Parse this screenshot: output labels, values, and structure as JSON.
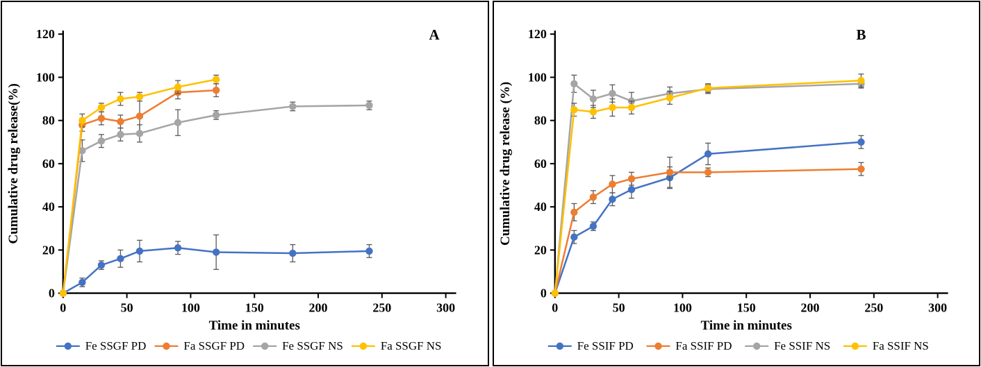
{
  "figure": {
    "background": "#ffffff",
    "border_color": "#000000"
  },
  "chart_data": [
    {
      "type": "line",
      "panel_label": "A",
      "xlabel": "Time in minutes",
      "ylabel": "Cumulative drug release(%)",
      "xlim": [
        0,
        300
      ],
      "ylim": [
        0,
        120
      ],
      "xticks": [
        0,
        50,
        100,
        150,
        200,
        250,
        300
      ],
      "yticks": [
        0,
        20,
        40,
        60,
        80,
        100,
        120
      ],
      "grid": false,
      "error_bars": true,
      "legend_position": "bottom",
      "panel_label_xfrac": 0.97,
      "axis_color": "#000000",
      "error_bar_color": "#595959",
      "series": [
        {
          "name": "Fe SSGF PD",
          "color": "#4472C4",
          "x": [
            0,
            15,
            30,
            45,
            60,
            90,
            120,
            180,
            240
          ],
          "y": [
            0,
            5,
            13,
            16,
            19.5,
            21,
            19,
            18.5,
            19.5
          ],
          "err": [
            0,
            2,
            2,
            4,
            5,
            3,
            8,
            4,
            3
          ]
        },
        {
          "name": "Fa SSGF PD",
          "color": "#ED7D31",
          "x": [
            0,
            15,
            30,
            45,
            60,
            90,
            120
          ],
          "y": [
            0,
            78,
            81,
            79.5,
            82,
            93,
            94
          ],
          "err": [
            0,
            3,
            3,
            3,
            8,
            3,
            3
          ]
        },
        {
          "name": "Fe SSGF NS",
          "color": "#A5A5A5",
          "x": [
            0,
            15,
            30,
            45,
            60,
            90,
            120,
            180,
            240
          ],
          "y": [
            0,
            66,
            70.5,
            73.5,
            74,
            79,
            82.5,
            86.5,
            87
          ],
          "err": [
            0,
            5,
            3,
            3,
            4,
            6,
            2,
            2,
            2
          ]
        },
        {
          "name": "Fa SSGF NS",
          "color": "#FFC000",
          "x": [
            0,
            15,
            30,
            45,
            60,
            90,
            120
          ],
          "y": [
            0,
            80,
            86,
            90,
            91,
            95.5,
            99
          ],
          "err": [
            0,
            3,
            2,
            3,
            2,
            3,
            2
          ]
        }
      ]
    },
    {
      "type": "line",
      "panel_label": "B",
      "xlabel": "Time in minutes",
      "ylabel": "Cumulative drug release (%)",
      "xlim": [
        0,
        300
      ],
      "ylim": [
        0,
        120
      ],
      "xticks": [
        0,
        50,
        100,
        150,
        200,
        250,
        300
      ],
      "yticks": [
        0,
        20,
        40,
        60,
        80,
        100,
        120
      ],
      "grid": false,
      "error_bars": true,
      "legend_position": "bottom",
      "panel_label_xfrac": 0.8,
      "axis_color": "#000000",
      "error_bar_color": "#595959",
      "series": [
        {
          "name": "Fe SSIF PD",
          "color": "#4472C4",
          "x": [
            0,
            15,
            30,
            45,
            60,
            90,
            120,
            240
          ],
          "y": [
            0,
            26,
            31,
            43.5,
            48,
            53.5,
            64.5,
            70
          ],
          "err": [
            0,
            3,
            2,
            3,
            4,
            5,
            5,
            3
          ]
        },
        {
          "name": "Fa SSIF PD",
          "color": "#ED7D31",
          "x": [
            0,
            15,
            30,
            45,
            60,
            90,
            120,
            240
          ],
          "y": [
            0,
            37.5,
            44.5,
            50.5,
            53,
            56,
            56,
            57.5
          ],
          "err": [
            0,
            4,
            3,
            4,
            3,
            7,
            2,
            3
          ]
        },
        {
          "name": "Fe SSIF NS",
          "color": "#A5A5A5",
          "x": [
            0,
            15,
            30,
            45,
            60,
            90,
            120,
            240
          ],
          "y": [
            0,
            97,
            90,
            92.5,
            89,
            92.5,
            94.5,
            97
          ],
          "err": [
            0,
            4,
            4,
            4,
            4,
            3,
            2,
            2
          ]
        },
        {
          "name": "Fa SSIF NS",
          "color": "#FFC000",
          "x": [
            0,
            15,
            30,
            45,
            60,
            90,
            120,
            240
          ],
          "y": [
            0,
            85,
            84,
            86,
            86,
            90.5,
            95,
            98.5
          ],
          "err": [
            0,
            3,
            3,
            4,
            3,
            3,
            2,
            3
          ]
        }
      ]
    }
  ]
}
